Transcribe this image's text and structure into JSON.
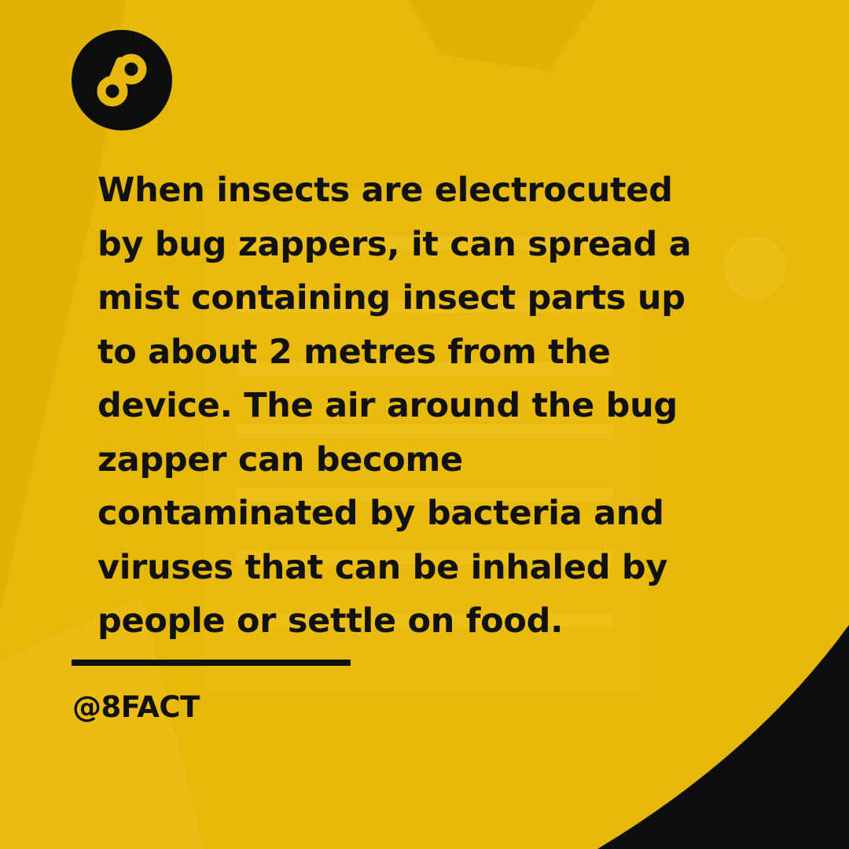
{
  "colors": {
    "background": "#e6b80a",
    "text": "#111111",
    "corner": "#0d0d0d"
  },
  "logo": {
    "icon": "infinity-eight-icon"
  },
  "fact": {
    "lines": [
      "When insects are electrocuted",
      "by bug zappers, it can spread a",
      "mist containing insect parts up",
      "to about 2 metres from the",
      "device. The air around the bug",
      "zapper can become",
      "contaminated by bacteria and",
      "viruses that can be inhaled by",
      "people or settle on food."
    ]
  },
  "footer": {
    "handle": "@8FACT"
  }
}
